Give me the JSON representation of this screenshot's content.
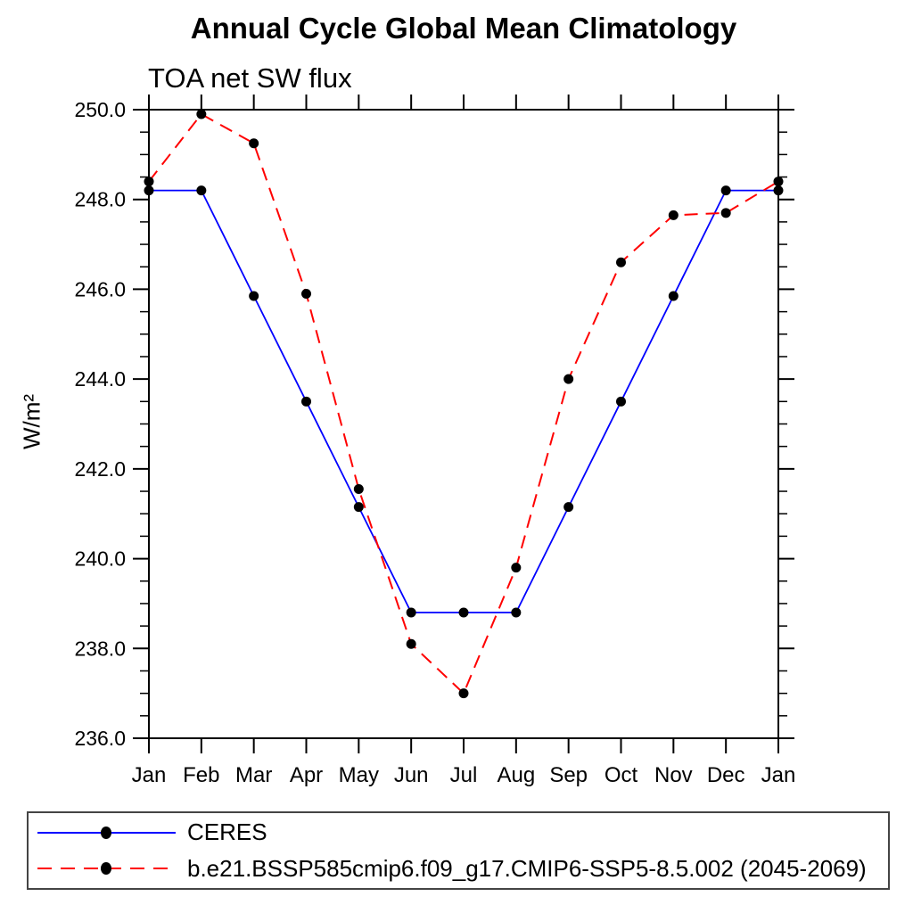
{
  "title": "Annual Cycle Global Mean Climatology",
  "subtitle": "TOA net SW flux",
  "ylabel": "W/m²",
  "chart_data": {
    "type": "line",
    "categories": [
      "Jan",
      "Feb",
      "Mar",
      "Apr",
      "May",
      "Jun",
      "Jul",
      "Aug",
      "Sep",
      "Oct",
      "Nov",
      "Dec",
      "Jan"
    ],
    "series": [
      {
        "name": "CERES",
        "color": "#0000ff",
        "line_style": "solid",
        "marker": "filled-black-circle",
        "values": [
          248.2,
          248.2,
          245.85,
          243.5,
          241.15,
          238.8,
          238.8,
          238.8,
          241.15,
          243.5,
          245.85,
          248.2,
          248.2
        ]
      },
      {
        "name": "b.e21.BSSP585cmip6.f09_g17.CMIP6-SSP5-8.5.002 (2045-2069)",
        "color": "#ff0000",
        "line_style": "dashed",
        "marker": "filled-black-circle",
        "values": [
          248.4,
          249.9,
          249.25,
          245.9,
          241.55,
          238.1,
          237.0,
          239.8,
          244.0,
          246.6,
          247.65,
          247.7,
          248.4
        ]
      }
    ],
    "xlabel": "",
    "ylabel": "W/m²",
    "ylim": [
      236.0,
      250.0
    ],
    "ytick_step": 2.0,
    "y_minor_step": 0.5,
    "y_tick_labels": [
      "250.0",
      "248.0",
      "246.0",
      "244.0",
      "242.0",
      "240.0",
      "238.0",
      "236.0"
    ],
    "grid": false,
    "legend_position": "bottom-left-box"
  }
}
